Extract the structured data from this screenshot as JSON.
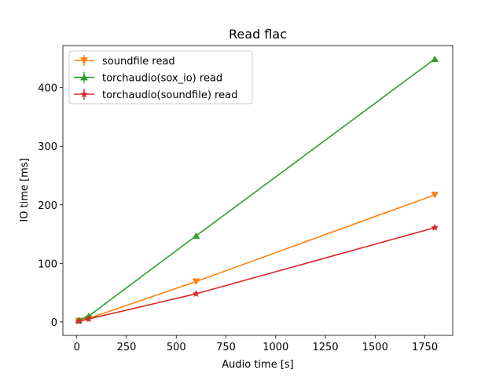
{
  "chart_data": {
    "type": "line",
    "title": "Read flac",
    "xlabel": "Audio time [s]",
    "ylabel": "IO time [ms]",
    "xlim": [
      -70,
      1890
    ],
    "ylim": [
      -23,
      472
    ],
    "xticks": [
      0,
      250,
      500,
      750,
      1000,
      1250,
      1500,
      1750
    ],
    "yticks": [
      0,
      100,
      200,
      300,
      400
    ],
    "grid": false,
    "legend_position": "upper-left",
    "series": [
      {
        "name": "soundfile read",
        "color": "#ff7f0e",
        "marker": "triangle-down",
        "x": [
          10,
          60,
          600,
          1800
        ],
        "y": [
          2,
          6,
          69,
          217
        ]
      },
      {
        "name": "torchaudio(sox_io) read",
        "color": "#2ca02c",
        "marker": "triangle-up",
        "x": [
          10,
          60,
          600,
          1800
        ],
        "y": [
          3,
          10,
          147,
          449
        ]
      },
      {
        "name": "torchaudio(soundfile) read",
        "color": "#d62728",
        "marker": "star",
        "x": [
          10,
          60,
          600,
          1800
        ],
        "y": [
          1,
          5,
          48,
          161
        ]
      }
    ]
  }
}
